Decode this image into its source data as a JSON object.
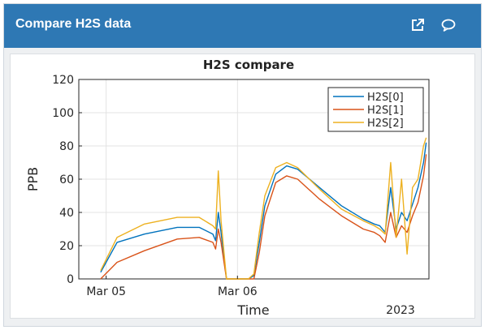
{
  "widget": {
    "title": "Compare H2S data",
    "icons": {
      "open": "external-link-icon",
      "comment": "comment-icon"
    }
  },
  "chart_data": {
    "type": "line",
    "title": "H2S compare",
    "xlabel": "Time",
    "ylabel": "PPB",
    "x_tick_labels": [
      "Mar 05",
      "Mar 06"
    ],
    "x_secondary_label": "2023",
    "ylim": [
      0,
      120
    ],
    "y_ticks": [
      0,
      20,
      40,
      60,
      80,
      100,
      120
    ],
    "x_unit": "hours since 2023-03-04 23:00",
    "xlim": [
      0,
      64
    ],
    "grid": true,
    "legend_position": "top-right",
    "series": [
      {
        "name": "H2S[0]",
        "color": "#0072bd",
        "points": [
          [
            4,
            4
          ],
          [
            7,
            22
          ],
          [
            12,
            27
          ],
          [
            18,
            31
          ],
          [
            22,
            31
          ],
          [
            24.5,
            27
          ],
          [
            25,
            23
          ],
          [
            25.5,
            40
          ],
          [
            26,
            28
          ],
          [
            27,
            0
          ],
          [
            31,
            0
          ],
          [
            32,
            2
          ],
          [
            33,
            22
          ],
          [
            34,
            44
          ],
          [
            36,
            63
          ],
          [
            38,
            68
          ],
          [
            40,
            66
          ],
          [
            44,
            55
          ],
          [
            48,
            44
          ],
          [
            52,
            36
          ],
          [
            54,
            33
          ],
          [
            55,
            32
          ],
          [
            56,
            28
          ],
          [
            57,
            55
          ],
          [
            58,
            30
          ],
          [
            59,
            40
          ],
          [
            60,
            35
          ],
          [
            61,
            45
          ],
          [
            62,
            55
          ],
          [
            63,
            70
          ],
          [
            63.5,
            82
          ]
        ]
      },
      {
        "name": "H2S[1]",
        "color": "#d95319",
        "points": [
          [
            4,
            0
          ],
          [
            7,
            10
          ],
          [
            12,
            17
          ],
          [
            18,
            24
          ],
          [
            22,
            25
          ],
          [
            24.5,
            22
          ],
          [
            25,
            18
          ],
          [
            25.5,
            30
          ],
          [
            26,
            22
          ],
          [
            27,
            0
          ],
          [
            31,
            0
          ],
          [
            32,
            0
          ],
          [
            33,
            16
          ],
          [
            34,
            38
          ],
          [
            36,
            58
          ],
          [
            38,
            62
          ],
          [
            40,
            60
          ],
          [
            44,
            48
          ],
          [
            48,
            38
          ],
          [
            52,
            30
          ],
          [
            54,
            28
          ],
          [
            55,
            26
          ],
          [
            56,
            22
          ],
          [
            57,
            40
          ],
          [
            58,
            25
          ],
          [
            59,
            32
          ],
          [
            60,
            28
          ],
          [
            61,
            38
          ],
          [
            62,
            46
          ],
          [
            63,
            62
          ],
          [
            63.5,
            75
          ]
        ]
      },
      {
        "name": "H2S[2]",
        "color": "#edb120",
        "points": [
          [
            4,
            5
          ],
          [
            7,
            25
          ],
          [
            12,
            33
          ],
          [
            18,
            37
          ],
          [
            22,
            37
          ],
          [
            24.5,
            32
          ],
          [
            25,
            30
          ],
          [
            25.5,
            65
          ],
          [
            26,
            35
          ],
          [
            27,
            0
          ],
          [
            31,
            0
          ],
          [
            32,
            3
          ],
          [
            33,
            28
          ],
          [
            34,
            50
          ],
          [
            36,
            67
          ],
          [
            38,
            70
          ],
          [
            40,
            67
          ],
          [
            44,
            54
          ],
          [
            48,
            42
          ],
          [
            52,
            35
          ],
          [
            54,
            32
          ],
          [
            55,
            30
          ],
          [
            56,
            27
          ],
          [
            57,
            70
          ],
          [
            58,
            25
          ],
          [
            59,
            60
          ],
          [
            60,
            15
          ],
          [
            61,
            55
          ],
          [
            62,
            60
          ],
          [
            63,
            80
          ],
          [
            63.5,
            85
          ]
        ]
      }
    ]
  }
}
